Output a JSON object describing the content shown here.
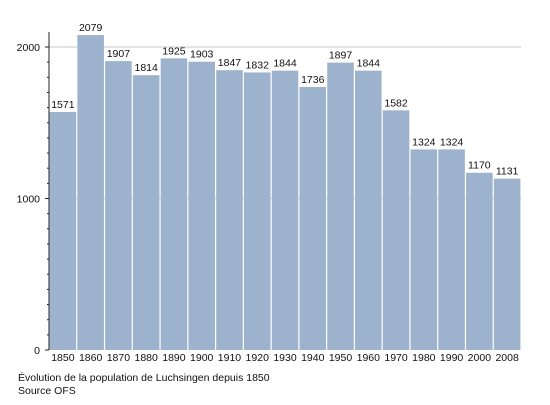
{
  "chart_data": {
    "type": "bar",
    "categories": [
      "1850",
      "1860",
      "1870",
      "1880",
      "1890",
      "1900",
      "1910",
      "1920",
      "1930",
      "1940",
      "1950",
      "1960",
      "1970",
      "1980",
      "1990",
      "2000",
      "2008"
    ],
    "values": [
      1571,
      2079,
      1907,
      1814,
      1925,
      1903,
      1847,
      1832,
      1844,
      1736,
      1897,
      1844,
      1582,
      1324,
      1324,
      1170,
      1131
    ],
    "ylim": [
      0,
      2000
    ],
    "yticks": [
      "0",
      "1000",
      "2000"
    ],
    "grid": "horizontal at major ticks",
    "bar_color": "#9db3cd",
    "gridline_color": "#c8c8c8"
  },
  "caption": {
    "line1": "Évolution de la population de Luchsingen depuis 1850",
    "line2": "Source OFS"
  }
}
